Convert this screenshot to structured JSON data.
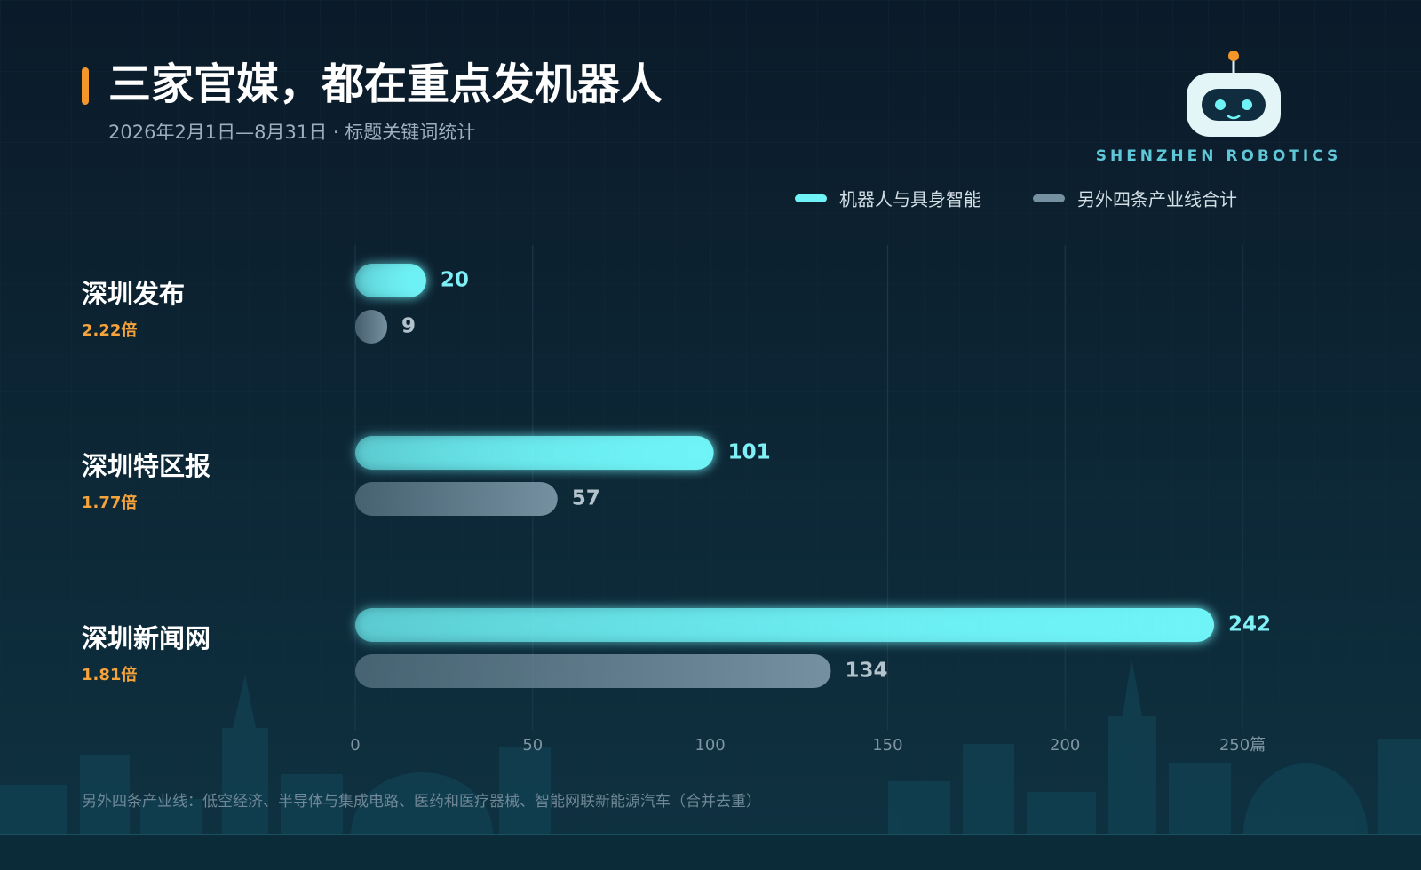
{
  "chart_data": {
    "type": "hbar",
    "title": "三家官媒，都在重点发机器人",
    "subtitle": "2026年2月1日—8月31日 · 标题关键词统计",
    "brand": "SHENZHEN ROBOTICS",
    "categories": [
      "深圳发布",
      "深圳特区报",
      "深圳新闻网"
    ],
    "category_notes": [
      "2.22倍",
      "1.77倍",
      "1.81倍"
    ],
    "series": [
      {
        "name": "机器人与具身智能",
        "color": "#6ff3f6",
        "values": [
          20,
          101,
          242
        ]
      },
      {
        "name": "另外四条产业线合计",
        "color": "#7590a0",
        "values": [
          9,
          57,
          134
        ]
      }
    ],
    "xlim": [
      0,
      250
    ],
    "xticks": [
      0,
      50,
      100,
      150,
      200,
      {
        "value": 250,
        "label": "250篇"
      }
    ],
    "grid": true,
    "legend": "top-right",
    "footnote": "另外四条产业线：低空经济、半导体与集成电路、医药和医疗器械、智能网联新能源汽车（合并去重）"
  }
}
